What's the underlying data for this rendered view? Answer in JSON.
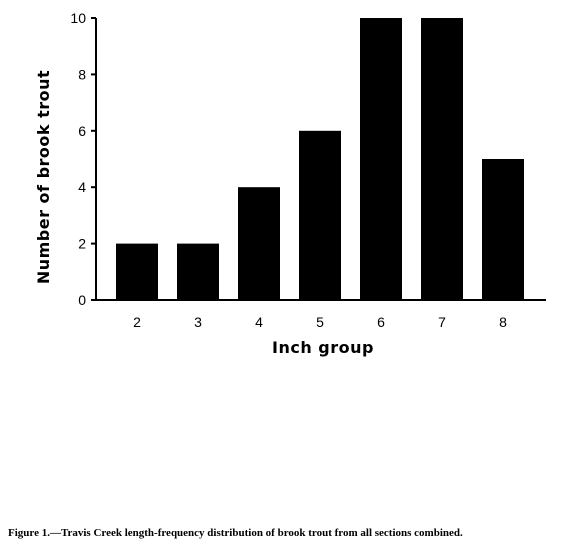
{
  "caption": "Figure 1.—Travis Creek length-frequency distribution of brook trout from all sections combined.",
  "chart_data": {
    "type": "bar",
    "categories": [
      "2",
      "3",
      "4",
      "5",
      "6",
      "7",
      "8"
    ],
    "values": [
      2,
      2,
      4,
      6,
      10,
      10,
      5
    ],
    "xlabel": "Inch group",
    "ylabel": "Number of brook trout",
    "ylim": [
      0,
      10
    ],
    "yticks": [
      0,
      2,
      4,
      6,
      8,
      10
    ],
    "grid": false,
    "bar_color": "#000000"
  }
}
